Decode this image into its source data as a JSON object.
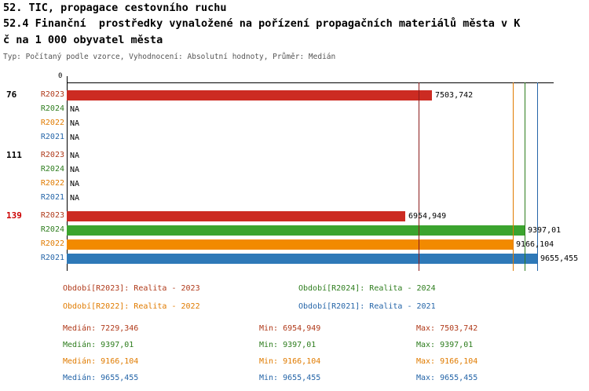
{
  "header": {
    "title_line1": "52. TIC, propagace cestovního ruchu",
    "title_line2": "52.4 Finanční  prostředky vynaložené na pořízení propagačních materiálů města v K",
    "title_line3": "č na 1 000 obyvatel města",
    "subtitle": "Typ: Počítaný podle vzorce, Vyhodnocení: Absolutní hodnoty, Průměr: Medián"
  },
  "chart_data": {
    "type": "bar",
    "orientation": "horizontal",
    "title": "52.4 Finanční prostředky vynaložené na pořízení propagačních materiálů města v Kč na 1 000 obyvatel města",
    "xlim": [
      0,
      10000
    ],
    "grid": false,
    "axis_origin_label": "0",
    "series_bar_colors": {
      "R2023": "#cc2b22",
      "R2024": "#3ba42e",
      "R2022": "#f28a00",
      "R2021": "#2e79b8"
    },
    "series_text_colors": {
      "R2023": "#b03a1a",
      "R2024": "#2e7d1e",
      "R2022": "#e07b00",
      "R2021": "#2565a8"
    },
    "groups": [
      {
        "label": "76",
        "label_color": "#000000",
        "rows": [
          {
            "series": "R2023",
            "value": 7503.742,
            "value_label": "7503,742"
          },
          {
            "series": "R2024",
            "value": null,
            "value_label": "NA"
          },
          {
            "series": "R2022",
            "value": null,
            "value_label": "NA"
          },
          {
            "series": "R2021",
            "value": null,
            "value_label": "NA"
          }
        ]
      },
      {
        "label": "111",
        "label_color": "#000000",
        "rows": [
          {
            "series": "R2023",
            "value": null,
            "value_label": "NA"
          },
          {
            "series": "R2024",
            "value": null,
            "value_label": "NA"
          },
          {
            "series": "R2022",
            "value": null,
            "value_label": "NA"
          },
          {
            "series": "R2021",
            "value": null,
            "value_label": "NA"
          }
        ]
      },
      {
        "label": "139",
        "label_color": "#cc0000",
        "rows": [
          {
            "series": "R2023",
            "value": 6954.949,
            "value_label": "6954,949"
          },
          {
            "series": "R2024",
            "value": 9397.01,
            "value_label": "9397,01"
          },
          {
            "series": "R2022",
            "value": 9166.104,
            "value_label": "9166,104"
          },
          {
            "series": "R2021",
            "value": 9655.455,
            "value_label": "9655,455"
          }
        ]
      }
    ],
    "medians": [
      {
        "series": "R2023",
        "value": 7229.346,
        "color": "#8b1a1a"
      },
      {
        "series": "R2024",
        "value": 9397.01,
        "color": "#2e7d1e"
      },
      {
        "series": "R2022",
        "value": 9166.104,
        "color": "#e07b00"
      },
      {
        "series": "R2021",
        "value": 9655.455,
        "color": "#2565a8"
      }
    ]
  },
  "legend": {
    "items": [
      {
        "label": "Období[R2023]: Realita - 2023",
        "color": "#b03a1a"
      },
      {
        "label": "Období[R2024]: Realita - 2024",
        "color": "#2e7d1e"
      },
      {
        "label": "Období[R2022]: Realita - 2022",
        "color": "#e07b00"
      },
      {
        "label": "Období[R2021]: Realita - 2021",
        "color": "#2565a8"
      }
    ]
  },
  "stats": {
    "rows": [
      {
        "color": "#b03a1a",
        "median": "Medián: 7229,346",
        "min": "Min: 6954,949",
        "max": "Max: 7503,742"
      },
      {
        "color": "#2e7d1e",
        "median": "Medián: 9397,01",
        "min": "Min: 9397,01",
        "max": "Max: 9397,01"
      },
      {
        "color": "#e07b00",
        "median": "Medián: 9166,104",
        "min": "Min: 9166,104",
        "max": "Max: 9166,104"
      },
      {
        "color": "#2565a8",
        "median": "Medián: 9655,455",
        "min": "Min: 9655,455",
        "max": "Max: 9655,455"
      }
    ]
  }
}
